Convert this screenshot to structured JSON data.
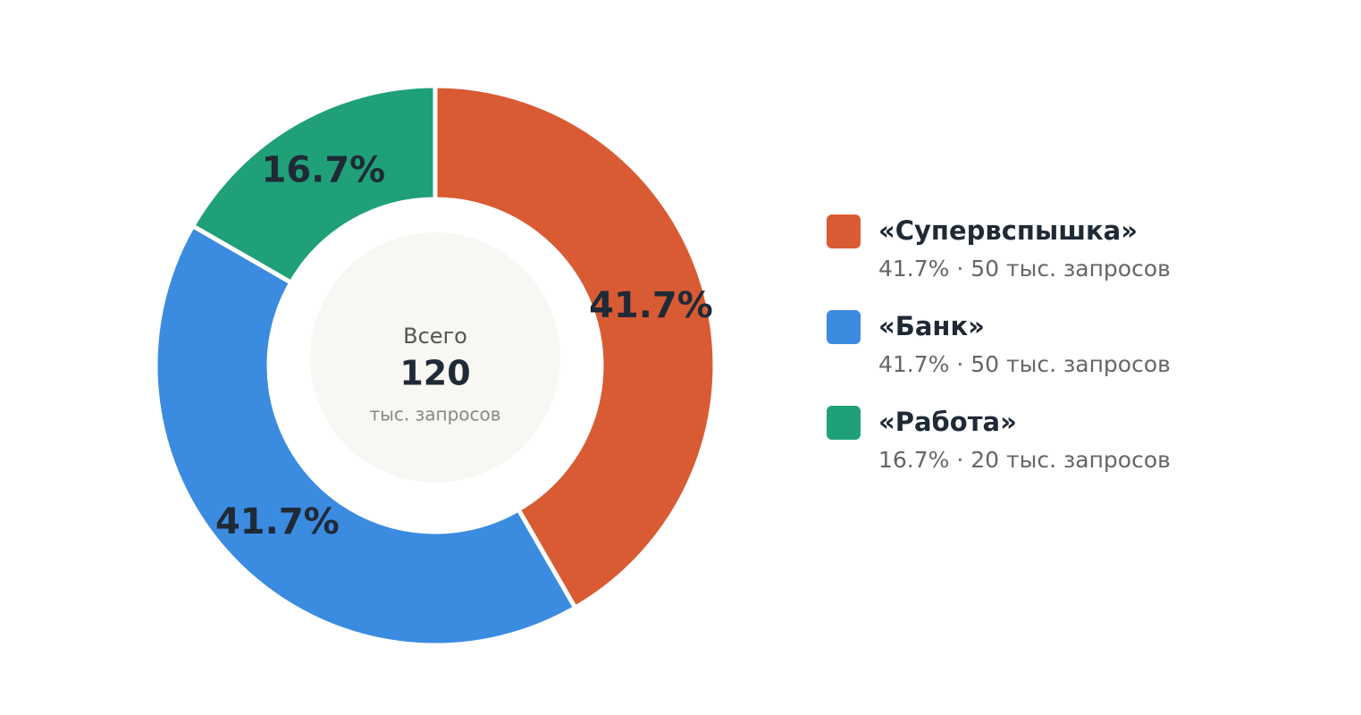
{
  "chart_data": {
    "type": "donut",
    "categories": [
      "«Супервспышка»",
      "«Банк»",
      "«Работа»"
    ],
    "values": [
      41.7,
      41.7,
      16.7
    ],
    "value_labels": [
      "41.7%",
      "41.7%",
      "16.7%"
    ],
    "colors": [
      "#d95b33",
      "#3b8be0",
      "#1fa078"
    ],
    "legend_details": [
      "41.7% · 50 тыс. запросов",
      "41.7% · 50 тыс. запросов",
      "16.7% · 20 тыс. запросов"
    ],
    "center": {
      "label": "Всего",
      "value": 120,
      "unit": "тыс. запросов"
    },
    "legend": "right"
  }
}
